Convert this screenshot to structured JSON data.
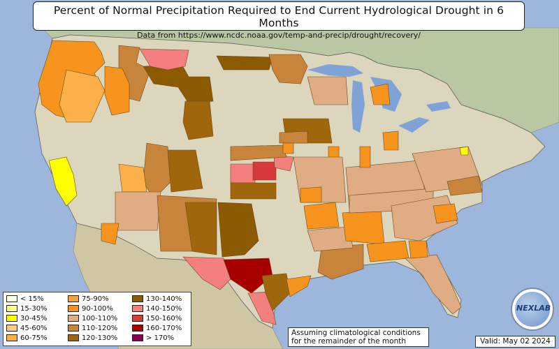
{
  "title": "Percent of Normal Precipitation Required to End Current Hydrological Drought in 6 Months",
  "subtitle": "Data from https://www.ncdc.noaa.gov/temp-and-precip/drought/recovery/",
  "note_line1": "Assuming climatological conditions",
  "note_line2": "for the remainder of the month",
  "valid": "Valid: May 02 2024",
  "logo_text": "NEXLAB",
  "colors": {
    "ocean": "#9db7dc",
    "land": "#dcd6bc",
    "canada": "#b9c7a3",
    "mexico": "#cfc7a3",
    "lake": "#7fa3d6"
  },
  "legend": [
    {
      "label": "< 15%",
      "color": "#fffde0"
    },
    {
      "label": "15-30%",
      "color": "#ffff99"
    },
    {
      "label": "30-45%",
      "color": "#ffff00"
    },
    {
      "label": "45-60%",
      "color": "#fccb8b"
    },
    {
      "label": "60-75%",
      "color": "#fbb04a"
    },
    {
      "label": "75-90%",
      "color": "#f9a13a"
    },
    {
      "label": "90-100%",
      "color": "#f7941d"
    },
    {
      "label": "100-110%",
      "color": "#dfac84"
    },
    {
      "label": "110-120%",
      "color": "#c8843a"
    },
    {
      "label": "120-130%",
      "color": "#a0660b"
    },
    {
      "label": "130-140%",
      "color": "#8c5a00"
    },
    {
      "label": "140-150%",
      "color": "#f47f7f"
    },
    {
      "label": "150-160%",
      "color": "#d63a3a"
    },
    {
      "label": "160-170%",
      "color": "#a80000"
    },
    {
      "label": "> 170%",
      "color": "#8c0050"
    }
  ]
}
